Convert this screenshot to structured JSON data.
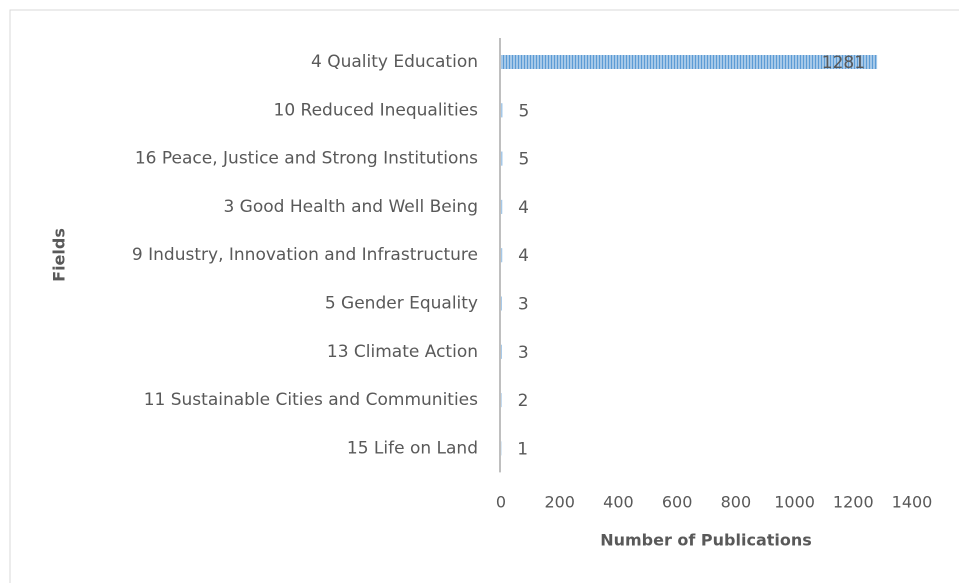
{
  "chart_data": {
    "type": "bar",
    "orientation": "horizontal",
    "categories": [
      "4 Quality Education",
      "10 Reduced Inequalities",
      "16 Peace, Justice and Strong Institutions",
      "3 Good Health and Well Being",
      "9 Industry, Innovation and Infrastructure",
      "5 Gender Equality",
      "13 Climate Action",
      "11 Sustainable Cities and Communities",
      "15 Life on Land"
    ],
    "values": [
      1281,
      5,
      5,
      4,
      4,
      3,
      3,
      2,
      1
    ],
    "color": "#5b9bd5",
    "xlim": [
      0,
      1400
    ],
    "xticks": [
      0,
      200,
      400,
      600,
      800,
      1000,
      1200,
      1400
    ],
    "xlabel": "Number of Publications",
    "ylabel": "Fields"
  }
}
